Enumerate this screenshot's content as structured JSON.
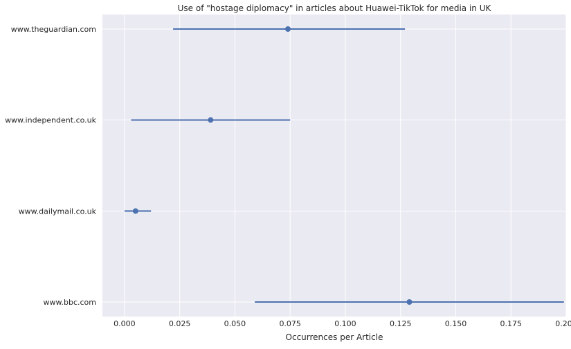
{
  "chart_data": {
    "type": "point-range",
    "title": "Use of \"hostage diplomacy\" in articles about Huawei-TikTok for media in UK",
    "xlabel": "Occurrences per Article",
    "ylabel": "",
    "xlim": [
      -0.01,
      0.2
    ],
    "xticks": [
      "0.000",
      "0.025",
      "0.050",
      "0.075",
      "0.100",
      "0.125",
      "0.150",
      "0.175",
      "0.200"
    ],
    "categories": [
      "www.theguardian.com",
      "www.independent.co.uk",
      "www.dailymail.co.uk",
      "www.bbc.com"
    ],
    "points": [
      {
        "category": "www.theguardian.com",
        "value": 0.074,
        "low": 0.022,
        "high": 0.127
      },
      {
        "category": "www.independent.co.uk",
        "value": 0.039,
        "low": 0.003,
        "high": 0.075
      },
      {
        "category": "www.dailymail.co.uk",
        "value": 0.005,
        "low": 0.0,
        "high": 0.012
      },
      {
        "category": "www.bbc.com",
        "value": 0.129,
        "low": 0.059,
        "high": 0.199
      }
    ],
    "grid": true,
    "colors": {
      "background": "#eaeaf2",
      "grid": "#ffffff",
      "series": "#4c72b0",
      "text": "#262626"
    }
  }
}
